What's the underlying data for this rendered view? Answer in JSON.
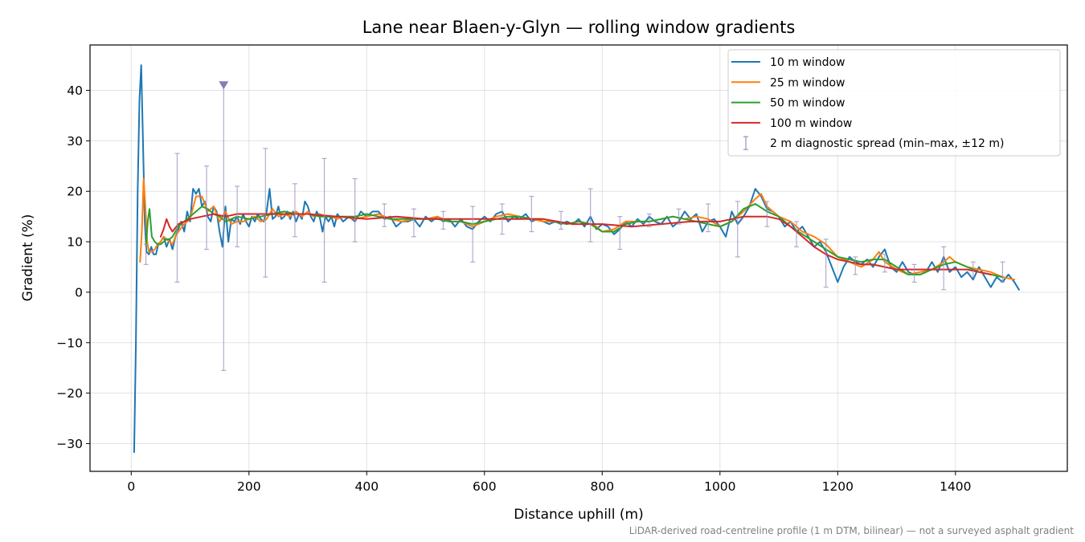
{
  "chart_data": {
    "type": "line",
    "title": "Lane near Blaen-y-Glyn — rolling window gradients",
    "xlabel": "Distance uphill (m)",
    "ylabel": "Gradient (%)",
    "xlim": [
      -70,
      1590
    ],
    "ylim": [
      -35.5,
      49
    ],
    "xticks": [
      0,
      200,
      400,
      600,
      800,
      1000,
      1200,
      1400
    ],
    "yticks": [
      -30,
      -20,
      -10,
      0,
      10,
      20,
      30,
      40
    ],
    "xtick_labels": [
      "0",
      "200",
      "400",
      "600",
      "800",
      "1000",
      "1200",
      "1400"
    ],
    "ytick_labels": [
      "−30",
      "−20",
      "−10",
      "0",
      "10",
      "20",
      "30",
      "40"
    ],
    "grid": true,
    "legend_position": "top-right",
    "series": [
      {
        "name": "10 m window",
        "color": "#1f77b4",
        "x": [
          5,
          8,
          11,
          14,
          17,
          20,
          23,
          26,
          30,
          34,
          38,
          42,
          46,
          50,
          55,
          60,
          65,
          70,
          75,
          80,
          85,
          90,
          95,
          100,
          105,
          110,
          115,
          120,
          125,
          130,
          135,
          140,
          145,
          150,
          155,
          160,
          165,
          170,
          175,
          180,
          185,
          190,
          195,
          200,
          205,
          210,
          215,
          220,
          225,
          230,
          235,
          240,
          245,
          250,
          255,
          260,
          265,
          270,
          275,
          280,
          285,
          290,
          295,
          300,
          305,
          310,
          315,
          320,
          325,
          330,
          335,
          340,
          345,
          350,
          360,
          370,
          380,
          390,
          400,
          410,
          420,
          430,
          440,
          450,
          460,
          470,
          480,
          490,
          500,
          510,
          520,
          530,
          540,
          550,
          560,
          570,
          580,
          590,
          600,
          610,
          620,
          630,
          640,
          650,
          660,
          670,
          680,
          690,
          700,
          710,
          720,
          730,
          740,
          750,
          760,
          770,
          780,
          790,
          800,
          810,
          820,
          830,
          840,
          850,
          860,
          870,
          880,
          890,
          900,
          910,
          920,
          930,
          940,
          950,
          960,
          970,
          980,
          990,
          1000,
          1010,
          1020,
          1030,
          1040,
          1050,
          1060,
          1070,
          1080,
          1090,
          1100,
          1110,
          1120,
          1130,
          1140,
          1150,
          1160,
          1170,
          1180,
          1190,
          1200,
          1210,
          1220,
          1230,
          1240,
          1250,
          1260,
          1270,
          1280,
          1290,
          1300,
          1310,
          1320,
          1330,
          1340,
          1350,
          1360,
          1370,
          1380,
          1390,
          1400,
          1410,
          1420,
          1430,
          1440,
          1450,
          1460,
          1470,
          1480,
          1490,
          1500,
          1508
        ],
        "y": [
          -31.7,
          -10,
          20,
          38,
          45,
          30,
          14,
          8,
          7.5,
          9,
          7.5,
          7.5,
          9.5,
          10,
          11,
          9,
          10.5,
          8.5,
          11,
          12.5,
          14,
          12,
          16,
          14,
          20.5,
          19.5,
          20.5,
          17,
          18,
          15,
          14,
          17,
          16,
          12,
          9,
          17,
          10,
          14.5,
          14,
          15,
          13.5,
          15.5,
          14,
          13,
          15,
          14,
          15.5,
          14.5,
          14,
          16,
          20.5,
          14.5,
          15,
          17,
          14.5,
          15,
          16,
          14.5,
          16,
          14,
          15.5,
          14.5,
          18,
          17,
          15,
          14,
          16,
          15,
          12,
          15,
          14,
          15,
          13,
          15.5,
          14,
          15,
          14,
          16,
          15,
          16,
          16,
          14.5,
          15,
          13,
          14,
          14,
          14.5,
          13,
          15,
          14,
          15,
          14,
          14.5,
          13,
          14.5,
          13,
          12.5,
          14,
          15,
          14,
          15.5,
          16,
          14,
          15,
          14.5,
          15.5,
          14,
          14.5,
          14,
          13.5,
          14,
          13.5,
          14,
          13.5,
          14.5,
          13,
          15,
          12.5,
          13.5,
          13,
          11.5,
          12.5,
          14,
          13,
          14.5,
          13.5,
          15,
          14,
          13.5,
          15,
          13,
          14,
          16,
          14.5,
          15.5,
          12,
          14,
          14.5,
          13,
          11,
          16,
          13.5,
          15,
          17,
          20.5,
          19,
          16.5,
          16,
          15,
          13,
          14,
          12,
          13,
          11,
          9,
          10,
          8,
          5,
          2,
          5,
          7,
          6,
          5.5,
          6.5,
          5,
          7,
          8.5,
          5,
          4,
          6,
          4,
          3.5,
          3.5,
          4,
          6,
          4,
          7,
          4,
          5,
          3,
          4,
          2.5,
          5,
          3,
          1,
          3,
          2,
          3.5,
          2,
          0.5
        ]
      },
      {
        "name": "25 m window",
        "color": "#ff7f0e",
        "x": [
          15,
          18,
          21,
          24,
          27,
          30,
          35,
          40,
          45,
          50,
          55,
          60,
          65,
          70,
          75,
          80,
          90,
          100,
          110,
          120,
          130,
          140,
          150,
          160,
          170,
          180,
          190,
          200,
          210,
          220,
          230,
          240,
          250,
          260,
          270,
          280,
          290,
          300,
          310,
          320,
          330,
          340,
          350,
          360,
          380,
          400,
          420,
          440,
          460,
          480,
          500,
          520,
          540,
          560,
          580,
          600,
          620,
          640,
          660,
          680,
          700,
          720,
          740,
          760,
          780,
          790,
          800,
          820,
          840,
          860,
          880,
          900,
          920,
          940,
          960,
          980,
          1000,
          1020,
          1040,
          1060,
          1070,
          1080,
          1100,
          1120,
          1140,
          1160,
          1180,
          1200,
          1220,
          1240,
          1260,
          1270,
          1280,
          1300,
          1320,
          1340,
          1360,
          1380,
          1390,
          1400,
          1420,
          1440,
          1460,
          1480,
          1500
        ],
        "y": [
          6,
          12,
          22.5,
          17,
          10,
          8,
          8,
          8.5,
          9.5,
          10,
          11,
          10.5,
          10,
          9.5,
          11,
          12,
          13.5,
          14.5,
          19,
          19,
          16,
          17,
          14,
          16,
          13.5,
          14,
          14,
          14.5,
          15,
          14,
          14.5,
          16.5,
          15,
          15.5,
          15,
          16,
          15,
          16,
          15,
          15.5,
          15,
          15,
          14.5,
          15,
          14.5,
          15,
          15.5,
          14.5,
          14,
          14.5,
          14.5,
          15,
          14,
          14,
          13,
          14,
          15,
          15.5,
          15,
          14.5,
          14,
          14,
          13.5,
          14,
          13.5,
          13,
          12,
          12.5,
          14,
          14,
          14,
          14.5,
          15,
          14.5,
          15,
          14.5,
          13,
          14,
          16,
          18.5,
          19.5,
          17,
          15,
          14,
          12,
          11,
          9.5,
          7,
          6,
          5,
          6.5,
          8,
          6,
          4.5,
          3.5,
          4,
          4.5,
          6,
          7,
          6,
          5,
          4.5,
          4,
          3,
          2.5
        ]
      },
      {
        "name": "50 m window",
        "color": "#2ca02c",
        "x": [
          25,
          28,
          31,
          35,
          40,
          45,
          50,
          55,
          60,
          65,
          70,
          80,
          90,
          100,
          110,
          120,
          130,
          140,
          150,
          160,
          170,
          180,
          200,
          220,
          240,
          260,
          280,
          300,
          320,
          340,
          360,
          380,
          400,
          420,
          440,
          460,
          480,
          500,
          520,
          540,
          560,
          580,
          600,
          620,
          640,
          660,
          680,
          700,
          720,
          740,
          760,
          780,
          800,
          820,
          840,
          860,
          880,
          900,
          920,
          940,
          960,
          980,
          1000,
          1020,
          1040,
          1060,
          1080,
          1100,
          1120,
          1140,
          1160,
          1180,
          1200,
          1220,
          1240,
          1260,
          1280,
          1300,
          1320,
          1340,
          1360,
          1380,
          1400,
          1420,
          1440,
          1460,
          1480
        ],
        "y": [
          9,
          14,
          16.5,
          11,
          10,
          9.5,
          9.5,
          10,
          10.5,
          10.5,
          11,
          13,
          14,
          15,
          16,
          17,
          16.5,
          15.5,
          15,
          14,
          14.5,
          15,
          14.5,
          15,
          15.5,
          16,
          15.5,
          15.5,
          15,
          15,
          15,
          15,
          15.5,
          15,
          14.5,
          14.5,
          14.5,
          14.5,
          14.5,
          14,
          14,
          13.5,
          14,
          14.5,
          15,
          15,
          14.5,
          14.5,
          14,
          13.5,
          14,
          13.5,
          12,
          12,
          13.5,
          14,
          14,
          14.5,
          15,
          14.5,
          14,
          13.5,
          13,
          14,
          16.5,
          17.5,
          16,
          15,
          13,
          11.5,
          10,
          8.5,
          7,
          6.5,
          6,
          6.5,
          6.5,
          5,
          3.5,
          3.5,
          4.5,
          5.5,
          6,
          5,
          4,
          3.5,
          3
        ]
      },
      {
        "name": "100 m window",
        "color": "#d62728",
        "x": [
          50,
          55,
          60,
          65,
          70,
          80,
          90,
          100,
          120,
          140,
          160,
          180,
          200,
          250,
          300,
          350,
          400,
          450,
          500,
          550,
          600,
          650,
          700,
          750,
          800,
          850,
          900,
          950,
          1000,
          1020,
          1040,
          1060,
          1080,
          1100,
          1120,
          1140,
          1160,
          1180,
          1200,
          1220,
          1240,
          1260,
          1280,
          1300,
          1320,
          1340,
          1360,
          1380,
          1400,
          1420,
          1440,
          1460
        ],
        "y": [
          11,
          12.5,
          14.5,
          13,
          12,
          13.5,
          14,
          14.5,
          15,
          15.5,
          15,
          15.5,
          15.5,
          15.5,
          15.5,
          15,
          14.5,
          15,
          14.5,
          14.5,
          14.5,
          14.5,
          14.5,
          13.5,
          13.5,
          13,
          13.5,
          14,
          14,
          14.5,
          15,
          15,
          15,
          14.5,
          13,
          11,
          9,
          7.5,
          6.5,
          6,
          5.5,
          5.5,
          5,
          4.5,
          4.5,
          4.5,
          4.5,
          4.5,
          4.5,
          4.5,
          4,
          3.5
        ]
      }
    ],
    "error_bars": {
      "name": "2 m diagnostic spread (min–max, ±12 m)",
      "color": "#9a90bd",
      "points": [
        {
          "x": 25,
          "min": 5.5,
          "max": 9.5
        },
        {
          "x": 78,
          "min": 2,
          "max": 27.5
        },
        {
          "x": 128,
          "min": 8.5,
          "max": 25
        },
        {
          "x": 157,
          "min": -15.5,
          "max": 41
        },
        {
          "x": 180,
          "min": 9,
          "max": 21
        },
        {
          "x": 228,
          "min": 3,
          "max": 28.5
        },
        {
          "x": 278,
          "min": 11,
          "max": 21.5
        },
        {
          "x": 328,
          "min": 2,
          "max": 26.5
        },
        {
          "x": 380,
          "min": 10,
          "max": 22.5
        },
        {
          "x": 430,
          "min": 13,
          "max": 17.5
        },
        {
          "x": 480,
          "min": 11,
          "max": 16.5
        },
        {
          "x": 530,
          "min": 12.5,
          "max": 16
        },
        {
          "x": 580,
          "min": 6,
          "max": 17
        },
        {
          "x": 630,
          "min": 11.5,
          "max": 17.5
        },
        {
          "x": 680,
          "min": 12,
          "max": 19
        },
        {
          "x": 730,
          "min": 12.5,
          "max": 16
        },
        {
          "x": 780,
          "min": 10,
          "max": 20.5
        },
        {
          "x": 830,
          "min": 8.5,
          "max": 15
        },
        {
          "x": 880,
          "min": 13,
          "max": 15.5
        },
        {
          "x": 930,
          "min": 13.5,
          "max": 16.5
        },
        {
          "x": 980,
          "min": 12,
          "max": 17.5
        },
        {
          "x": 1030,
          "min": 7,
          "max": 18
        },
        {
          "x": 1080,
          "min": 13,
          "max": 18
        },
        {
          "x": 1130,
          "min": 9,
          "max": 14
        },
        {
          "x": 1180,
          "min": 1,
          "max": 10.5
        },
        {
          "x": 1230,
          "min": 3.5,
          "max": 7
        },
        {
          "x": 1280,
          "min": 4,
          "max": 7.5
        },
        {
          "x": 1330,
          "min": 2,
          "max": 5.5
        },
        {
          "x": 1380,
          "min": 0.5,
          "max": 9
        },
        {
          "x": 1430,
          "min": 3,
          "max": 6
        },
        {
          "x": 1480,
          "min": 2,
          "max": 6
        }
      ],
      "clipped_marker": {
        "x": 157,
        "y": 41,
        "color": "#8c7bb3"
      }
    },
    "footnote": "LiDAR-derived road-centreline profile (1 m DTM, bilinear) — not a surveyed asphalt gradient"
  }
}
